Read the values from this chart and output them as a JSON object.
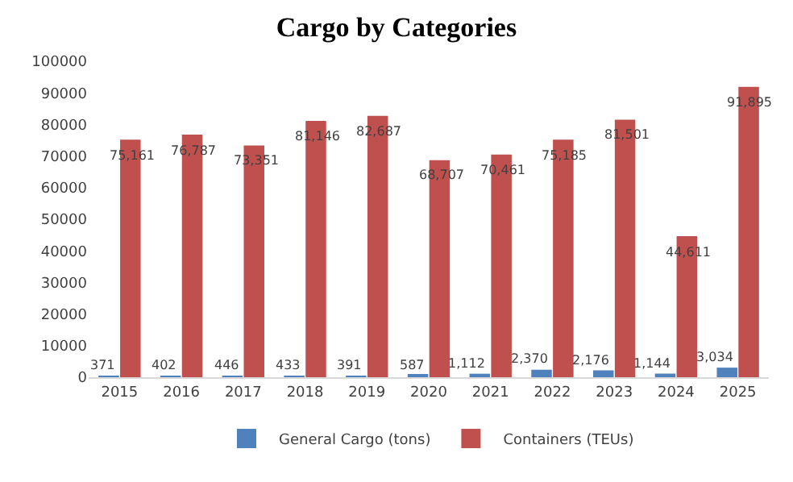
{
  "chart_data": {
    "type": "bar",
    "title": "Cargo by Categories",
    "categories": [
      "2015",
      "2016",
      "2017",
      "2018",
      "2019",
      "2020",
      "2021",
      "2022",
      "2023",
      "2024",
      "2025"
    ],
    "series": [
      {
        "name": "General Cargo (tons)",
        "color": "#4f81bd",
        "values": [
          371,
          402,
          446,
          433,
          391,
          587,
          1112,
          2370,
          2176,
          1144,
          3034
        ],
        "value_labels": [
          "371",
          "402",
          "446",
          "433",
          "391",
          "587",
          "1,112",
          "2,370",
          "2,176",
          "1,144",
          "3,034"
        ]
      },
      {
        "name": "Containers (TEUs)",
        "color": "#c0504d",
        "values": [
          75161,
          76787,
          73351,
          81146,
          82687,
          68707,
          70461,
          75185,
          81501,
          44611,
          91895
        ],
        "value_labels": [
          "75,161",
          "76,787",
          "73,351",
          "81,146",
          "82,687",
          "68,707",
          "70,461",
          "75,185",
          "81,501",
          "44,611",
          "91,895"
        ]
      }
    ],
    "ylim": [
      0,
      100000
    ],
    "yticks": [
      0,
      10000,
      20000,
      30000,
      40000,
      50000,
      60000,
      70000,
      80000,
      90000,
      100000
    ],
    "legend": "bottom"
  }
}
